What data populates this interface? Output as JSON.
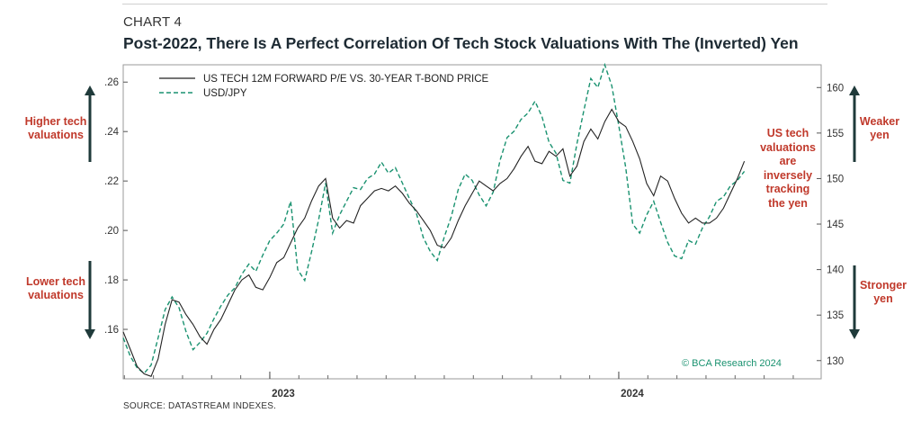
{
  "header": {
    "chart_number": "CHART 4",
    "title": "Post-2022, There Is A Perfect Correlation Of Tech Stock Valuations With The (Inverted) Yen"
  },
  "annotations": {
    "left_top": [
      "Higher tech",
      "valuations"
    ],
    "left_bottom": [
      "Lower tech",
      "valuations"
    ],
    "right_top": [
      "Weaker",
      "yen"
    ],
    "right_bottom": [
      "Stronger",
      "yen"
    ],
    "right_mid": [
      "US tech",
      "valuations",
      "are",
      "inversely",
      "tracking",
      "the yen"
    ],
    "watermark": "© BCA Research 2024",
    "source": "SOURCE: DATASTREAM INDEXES."
  },
  "colors": {
    "series1": "#222222",
    "series2": "#1a9270",
    "accent_text": "#c0392b",
    "arrow": "#1f3a3a"
  },
  "chart_data": {
    "type": "line",
    "x_tick_labels": [
      "2023",
      "2024"
    ],
    "xlim": [
      2022.58,
      2024.58
    ],
    "left_axis": {
      "ticks": [
        ".16",
        ".18",
        ".20",
        ".22",
        ".24",
        ".26"
      ],
      "ylim": [
        0.14,
        0.267
      ]
    },
    "right_axis": {
      "ticks": [
        "130",
        "135",
        "140",
        "145",
        "150",
        "155",
        "160"
      ],
      "ylim": [
        128,
        162.5
      ]
    },
    "legend": [
      {
        "name": "US TECH 12M FORWARD P/E VS. 30-YEAR T-BOND PRICE",
        "style": "solid"
      },
      {
        "name": "USD/JPY",
        "style": "dashed"
      }
    ],
    "legend_position": "top-left",
    "series": [
      {
        "name": "US TECH 12M FORWARD P/E VS. 30-YEAR T-BOND PRICE",
        "axis": "left",
        "x": [
          2022.58,
          2022.6,
          2022.62,
          2022.64,
          2022.66,
          2022.68,
          2022.7,
          2022.72,
          2022.74,
          2022.76,
          2022.78,
          2022.8,
          2022.82,
          2022.84,
          2022.86,
          2022.88,
          2022.9,
          2022.92,
          2022.94,
          2022.96,
          2022.98,
          2023.0,
          2023.02,
          2023.04,
          2023.06,
          2023.08,
          2023.1,
          2023.12,
          2023.14,
          2023.16,
          2023.18,
          2023.2,
          2023.22,
          2023.24,
          2023.26,
          2023.28,
          2023.3,
          2023.32,
          2023.34,
          2023.36,
          2023.38,
          2023.4,
          2023.42,
          2023.44,
          2023.46,
          2023.48,
          2023.5,
          2023.52,
          2023.54,
          2023.56,
          2023.58,
          2023.6,
          2023.62,
          2023.64,
          2023.66,
          2023.68,
          2023.7,
          2023.72,
          2023.74,
          2023.76,
          2023.78,
          2023.8,
          2023.82,
          2023.84,
          2023.86,
          2023.88,
          2023.9,
          2023.92,
          2023.94,
          2023.96,
          2023.98,
          2024.0,
          2024.02,
          2024.04,
          2024.06,
          2024.08,
          2024.1,
          2024.12,
          2024.14,
          2024.16,
          2024.18,
          2024.2,
          2024.22,
          2024.24,
          2024.26,
          2024.28,
          2024.3,
          2024.32,
          2024.34,
          2024.36
        ],
        "values": [
          0.159,
          0.152,
          0.145,
          0.142,
          0.141,
          0.148,
          0.162,
          0.172,
          0.171,
          0.166,
          0.162,
          0.157,
          0.154,
          0.16,
          0.164,
          0.17,
          0.176,
          0.18,
          0.182,
          0.177,
          0.176,
          0.181,
          0.187,
          0.189,
          0.195,
          0.201,
          0.205,
          0.212,
          0.218,
          0.221,
          0.205,
          0.201,
          0.204,
          0.203,
          0.21,
          0.213,
          0.216,
          0.217,
          0.216,
          0.218,
          0.215,
          0.211,
          0.208,
          0.204,
          0.2,
          0.194,
          0.193,
          0.197,
          0.204,
          0.21,
          0.215,
          0.22,
          0.218,
          0.216,
          0.219,
          0.221,
          0.225,
          0.23,
          0.234,
          0.228,
          0.227,
          0.232,
          0.23,
          0.233,
          0.222,
          0.226,
          0.236,
          0.241,
          0.237,
          0.244,
          0.249,
          0.244,
          0.242,
          0.236,
          0.229,
          0.219,
          0.214,
          0.222,
          0.22,
          0.213,
          0.207,
          0.203,
          0.205,
          0.203,
          0.203,
          0.205,
          0.209,
          0.215,
          0.221,
          0.228
        ]
      },
      {
        "name": "USD/JPY",
        "axis": "right",
        "x": [
          2022.58,
          2022.6,
          2022.62,
          2022.64,
          2022.66,
          2022.68,
          2022.7,
          2022.72,
          2022.74,
          2022.76,
          2022.78,
          2022.8,
          2022.82,
          2022.84,
          2022.86,
          2022.88,
          2022.9,
          2022.92,
          2022.94,
          2022.96,
          2022.98,
          2023.0,
          2023.02,
          2023.04,
          2023.06,
          2023.08,
          2023.1,
          2023.12,
          2023.14,
          2023.16,
          2023.18,
          2023.2,
          2023.22,
          2023.24,
          2023.26,
          2023.28,
          2023.3,
          2023.32,
          2023.34,
          2023.36,
          2023.38,
          2023.4,
          2023.42,
          2023.44,
          2023.46,
          2023.48,
          2023.5,
          2023.52,
          2023.54,
          2023.56,
          2023.58,
          2023.6,
          2023.62,
          2023.64,
          2023.66,
          2023.68,
          2023.7,
          2023.72,
          2023.74,
          2023.76,
          2023.78,
          2023.8,
          2023.82,
          2023.84,
          2023.86,
          2023.88,
          2023.9,
          2023.92,
          2023.94,
          2023.96,
          2023.98,
          2024.0,
          2024.02,
          2024.04,
          2024.06,
          2024.08,
          2024.1,
          2024.12,
          2024.14,
          2024.16,
          2024.18,
          2024.2,
          2024.22,
          2024.24,
          2024.26,
          2024.28,
          2024.3,
          2024.32,
          2024.34,
          2024.36
        ],
        "values": [
          132.5,
          130.5,
          129.2,
          128.6,
          129.5,
          132.5,
          135.6,
          137.0,
          135.8,
          133.2,
          131.2,
          132.0,
          133.0,
          134.6,
          136.0,
          137.2,
          138.0,
          139.5,
          140.6,
          139.8,
          141.6,
          143.2,
          144.0,
          145.0,
          147.5,
          140.0,
          138.8,
          142.0,
          145.5,
          149.5,
          144.0,
          146.0,
          147.5,
          149.0,
          148.8,
          150.0,
          150.5,
          151.8,
          150.6,
          151.2,
          149.5,
          147.8,
          146.2,
          143.5,
          142.0,
          141.0,
          143.6,
          145.8,
          148.8,
          150.5,
          149.8,
          148.2,
          147.0,
          148.5,
          152.0,
          154.5,
          155.2,
          156.5,
          157.2,
          158.5,
          156.8,
          154.0,
          152.8,
          149.8,
          149.5,
          153.8,
          157.5,
          161.0,
          160.0,
          162.5,
          160.2,
          155.8,
          151.2,
          145.0,
          144.0,
          146.0,
          147.5,
          145.2,
          143.0,
          141.5,
          141.2,
          143.2,
          142.8,
          144.6,
          145.8,
          147.5,
          148.0,
          149.2,
          149.8,
          150.8
        ]
      }
    ]
  }
}
